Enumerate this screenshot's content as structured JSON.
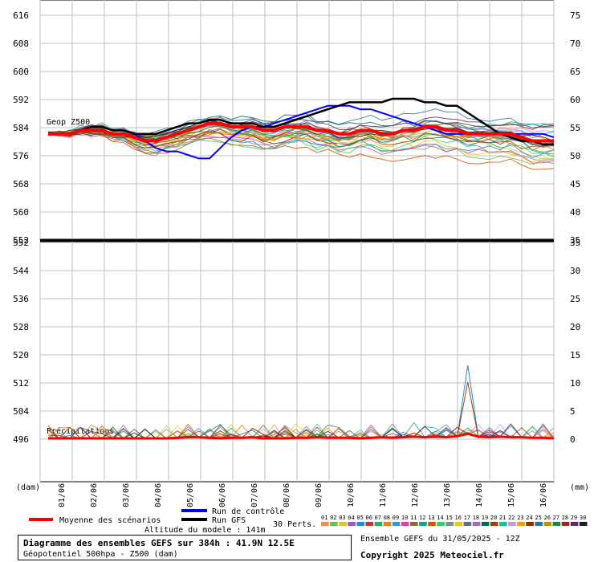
{
  "chart_data": {
    "type": "line",
    "top_panel": {
      "label": "Geop Z500",
      "left_ticks": [
        552,
        560,
        568,
        576,
        584,
        592,
        600,
        608,
        616
      ],
      "right_ticks": [
        35,
        40,
        45,
        50,
        55,
        60,
        65,
        70,
        75
      ],
      "ylim": [
        552,
        620
      ],
      "mean": [
        582,
        582,
        582,
        583,
        583,
        583,
        582,
        582,
        581,
        580,
        580,
        581,
        582,
        583,
        584,
        585,
        585,
        584,
        584,
        584,
        583,
        583,
        584,
        584,
        584,
        583,
        583,
        582,
        582,
        583,
        583,
        582,
        582,
        583,
        583,
        584,
        584,
        583,
        583,
        582,
        582,
        582,
        582,
        582,
        581,
        580,
        580,
        580
      ],
      "control": [
        582,
        582,
        582,
        583,
        584,
        584,
        583,
        583,
        582,
        580,
        578,
        577,
        577,
        576,
        575,
        575,
        578,
        581,
        583,
        584,
        584,
        585,
        586,
        587,
        588,
        589,
        590,
        590,
        590,
        589,
        589,
        588,
        587,
        586,
        585,
        584,
        583,
        582,
        582,
        582,
        582,
        582,
        582,
        582,
        582,
        582,
        582,
        581
      ],
      "gfs": [
        582,
        582,
        582,
        583,
        584,
        584,
        583,
        583,
        582,
        582,
        582,
        583,
        584,
        585,
        585,
        586,
        586,
        585,
        585,
        585,
        584,
        584,
        585,
        586,
        587,
        588,
        589,
        590,
        591,
        591,
        591,
        591,
        592,
        592,
        592,
        591,
        591,
        590,
        590,
        588,
        586,
        584,
        582,
        581,
        580,
        580,
        579,
        579
      ]
    },
    "bottom_panel": {
      "label": "Précipitations",
      "left_ticks": [
        496,
        504,
        512,
        520,
        528,
        536,
        544,
        552
      ],
      "right_ticks": [
        0,
        5,
        10,
        15,
        20,
        25,
        30,
        35
      ],
      "ylim": [
        488,
        552
      ],
      "mean": [
        0,
        0,
        0,
        0,
        0,
        0,
        0,
        0,
        0,
        0,
        0,
        0,
        0.1,
        0.2,
        0.2,
        0.1,
        0,
        0.1,
        0.1,
        0.2,
        0,
        0,
        0,
        0.1,
        0.1,
        0.2,
        0.1,
        0.1,
        0.1,
        0,
        0.1,
        0.2,
        0.1,
        0.2,
        0.3,
        0.2,
        0.3,
        0.2,
        0.4,
        0.8,
        0.3,
        0.2,
        0.3,
        0.2,
        0.2,
        0.1,
        0.1,
        0
      ],
      "max_peak_mm": 13
    },
    "x_labels": [
      "01/06",
      "02/06",
      "03/06",
      "04/06",
      "05/06",
      "06/06",
      "07/06",
      "08/06",
      "09/06",
      "10/06",
      "11/06",
      "12/06",
      "13/06",
      "14/06",
      "15/06",
      "16/06"
    ],
    "left_unit": "(dam)",
    "right_unit": "(mm)",
    "legend": {
      "mean": "Moyenne des scénarios",
      "control": "Run de contrôle",
      "gfs": "Run GFS",
      "perts": "30 Perts.",
      "pert_numbers": [
        "01",
        "02",
        "03",
        "04",
        "05",
        "06",
        "07",
        "08",
        "09",
        "10",
        "11",
        "12",
        "13",
        "14",
        "15",
        "16",
        "17",
        "18",
        "19",
        "20",
        "21",
        "22",
        "23",
        "24",
        "25",
        "26",
        "27",
        "28",
        "29",
        "30"
      ]
    },
    "colors": {
      "mean": "#ff0000",
      "control": "#0000ff",
      "gfs": "#000000",
      "grid": "#c0c0c0",
      "perts": [
        "#f08a4b",
        "#6bbf59",
        "#e0c030",
        "#9b59b6",
        "#1f8ad8",
        "#c0392b",
        "#27ae60",
        "#e67e22",
        "#3498db",
        "#e84393",
        "#8e6c3a",
        "#16a085",
        "#d35400",
        "#2ecc71",
        "#7f8c8d",
        "#f1c40f",
        "#5d6d7e",
        "#a569bd",
        "#0e6655",
        "#a04000",
        "#1abc9c",
        "#c39bd3",
        "#f39c12",
        "#873600",
        "#2874a6",
        "#b7950b",
        "#1e8449",
        "#922b21",
        "#5b2c6f",
        "#17202a"
      ]
    }
  },
  "footer": {
    "altitude": "Altitude du modele : 141m",
    "title": "Diagramme des ensembles GEFS sur 384h : 41.9N 12.5E",
    "subtitle": "Géopotentiel 500hpa - Z500 (dam)",
    "ensemble_date": "Ensemble GEFS du 31/05/2025 - 12Z",
    "copyright": "Copyright 2025 Meteociel.fr"
  }
}
